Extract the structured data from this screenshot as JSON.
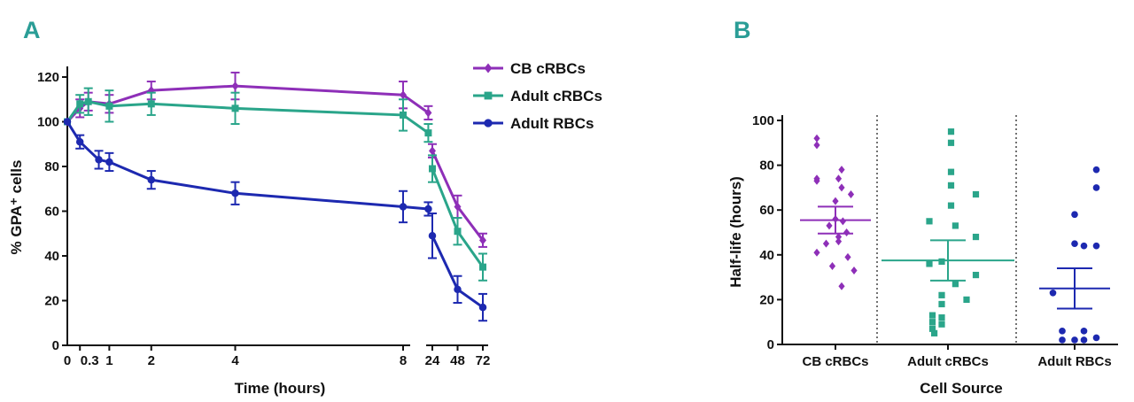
{
  "panels": {
    "a": "A",
    "b": "B"
  },
  "chart_data": [
    {
      "type": "line",
      "panel": "A",
      "xlabel": "Time (hours)",
      "ylabel": "% GPA⁺ cells",
      "ylim": [
        0,
        125
      ],
      "yticks": [
        "0",
        "20",
        "40",
        "60",
        "80",
        "100",
        "120"
      ],
      "xticks_left": [
        "0.3",
        "1",
        "2",
        "4",
        "8"
      ],
      "xtick_zero": "0",
      "xticks_right": [
        "24",
        "48",
        "72"
      ],
      "legend": "top-right",
      "series": [
        {
          "name": "CB cRBCs",
          "color": "#8e2fb8",
          "marker": "diamond",
          "left": [
            [
              0,
              100,
              0
            ],
            [
              0.3,
              106,
              4
            ],
            [
              0.5,
              109,
              4
            ],
            [
              1,
              108,
              4
            ],
            [
              2,
              114,
              4
            ],
            [
              4,
              116,
              6
            ],
            [
              8,
              112,
              6
            ],
            [
              8.6,
              104,
              3
            ]
          ],
          "right": [
            [
              24,
              87,
              3
            ],
            [
              48,
              62,
              5
            ],
            [
              72,
              47,
              3
            ]
          ]
        },
        {
          "name": "Adult cRBCs",
          "color": "#2aa58a",
          "marker": "square",
          "left": [
            [
              0,
              100,
              0
            ],
            [
              0.3,
              108,
              4
            ],
            [
              0.5,
              109,
              6
            ],
            [
              1,
              107,
              7
            ],
            [
              2,
              108,
              5
            ],
            [
              4,
              106,
              7
            ],
            [
              8,
              103,
              7
            ],
            [
              8.6,
              95,
              4
            ]
          ],
          "right": [
            [
              24,
              79,
              6
            ],
            [
              48,
              51,
              6
            ],
            [
              72,
              35,
              6
            ]
          ]
        },
        {
          "name": "Adult RBCs",
          "color": "#1d29b0",
          "marker": "circle",
          "left": [
            [
              0,
              100,
              0
            ],
            [
              0.3,
              91,
              3
            ],
            [
              0.75,
              83,
              4
            ],
            [
              1,
              82,
              4
            ],
            [
              2,
              74,
              4
            ],
            [
              4,
              68,
              5
            ],
            [
              8,
              62,
              7
            ],
            [
              8.6,
              61,
              3
            ]
          ],
          "right": [
            [
              24,
              49,
              10
            ],
            [
              48,
              25,
              6
            ],
            [
              72,
              17,
              6
            ]
          ]
        }
      ]
    },
    {
      "type": "scatter",
      "panel": "B",
      "xlabel": "Cell Source",
      "ylabel": "Half-life (hours)",
      "ylim": [
        0,
        100
      ],
      "yticks": [
        "0",
        "20",
        "40",
        "60",
        "80",
        "100"
      ],
      "categories": [
        "CB cRBCs",
        "Adult cRBCs",
        "Adult RBCs"
      ],
      "groups": [
        {
          "name": "CB cRBCs",
          "color": "#8e2fb8",
          "marker": "diamond",
          "mean": 55.5,
          "sem": 6,
          "points": [
            [
              -0.3,
              92
            ],
            [
              -0.3,
              89
            ],
            [
              -0.3,
              74
            ],
            [
              -0.3,
              73
            ],
            [
              -0.3,
              41
            ],
            [
              -0.15,
              45
            ],
            [
              -0.1,
              53
            ],
            [
              0,
              56
            ],
            [
              0.1,
              78
            ],
            [
              0.05,
              74
            ],
            [
              0.1,
              70
            ],
            [
              0.0,
              64
            ],
            [
              0.12,
              55
            ],
            [
              0.18,
              50
            ],
            [
              0.05,
              48
            ],
            [
              0.05,
              46
            ],
            [
              -0.05,
              35
            ],
            [
              0.2,
              39
            ],
            [
              0.25,
              67
            ],
            [
              0.3,
              33
            ],
            [
              0.1,
              26
            ]
          ]
        },
        {
          "name": "Adult cRBCs",
          "color": "#2aa58a",
          "marker": "square",
          "mean": 37.5,
          "sem": 9,
          "points": [
            [
              -0.3,
              55
            ],
            [
              -0.3,
              36
            ],
            [
              -0.1,
              37
            ],
            [
              -0.1,
              22
            ],
            [
              -0.1,
              18
            ],
            [
              -0.1,
              12
            ],
            [
              -0.25,
              13
            ],
            [
              -0.25,
              10
            ],
            [
              -0.25,
              7
            ],
            [
              -0.22,
              5
            ],
            [
              -0.1,
              9
            ],
            [
              0.05,
              95
            ],
            [
              0.05,
              90
            ],
            [
              0.05,
              77
            ],
            [
              0.05,
              71
            ],
            [
              0.05,
              62
            ],
            [
              0.12,
              53
            ],
            [
              0.12,
              27
            ],
            [
              0.3,
              20
            ],
            [
              0.45,
              67
            ],
            [
              0.45,
              48
            ],
            [
              0.45,
              31
            ]
          ]
        },
        {
          "name": "Adult RBCs",
          "color": "#1d29b0",
          "marker": "circle",
          "mean": 25,
          "sem": 9,
          "points": [
            [
              -0.35,
              23
            ],
            [
              -0.2,
              6
            ],
            [
              -0.2,
              2
            ],
            [
              0.0,
              58
            ],
            [
              0.0,
              45
            ],
            [
              0.0,
              2
            ],
            [
              0.15,
              44
            ],
            [
              0.15,
              6
            ],
            [
              0.15,
              2
            ],
            [
              0.35,
              78
            ],
            [
              0.35,
              70
            ],
            [
              0.35,
              44
            ],
            [
              0.35,
              3
            ]
          ]
        }
      ]
    }
  ]
}
